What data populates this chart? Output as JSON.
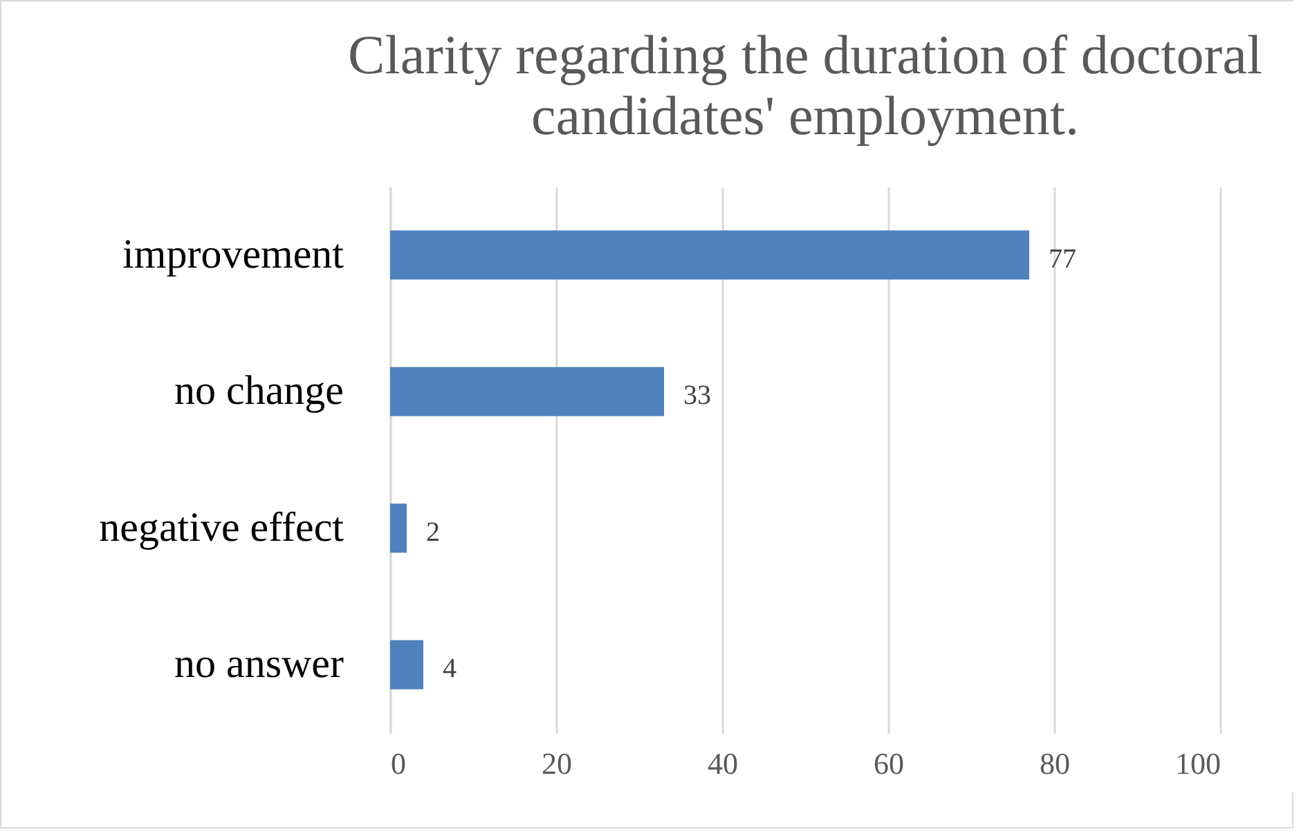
{
  "chart_data": {
    "type": "bar",
    "orientation": "horizontal",
    "title": "Clarity regarding the duration of doctoral candidates' employment.",
    "categories": [
      "improvement",
      "no change",
      "negative effect",
      "no answer"
    ],
    "values": [
      77,
      33,
      2,
      4
    ],
    "color": "#4f81bd",
    "xlim": [
      0,
      100
    ],
    "xticks": [
      0,
      20,
      40,
      60,
      80,
      100
    ],
    "grid": "x",
    "data_labels": true
  }
}
